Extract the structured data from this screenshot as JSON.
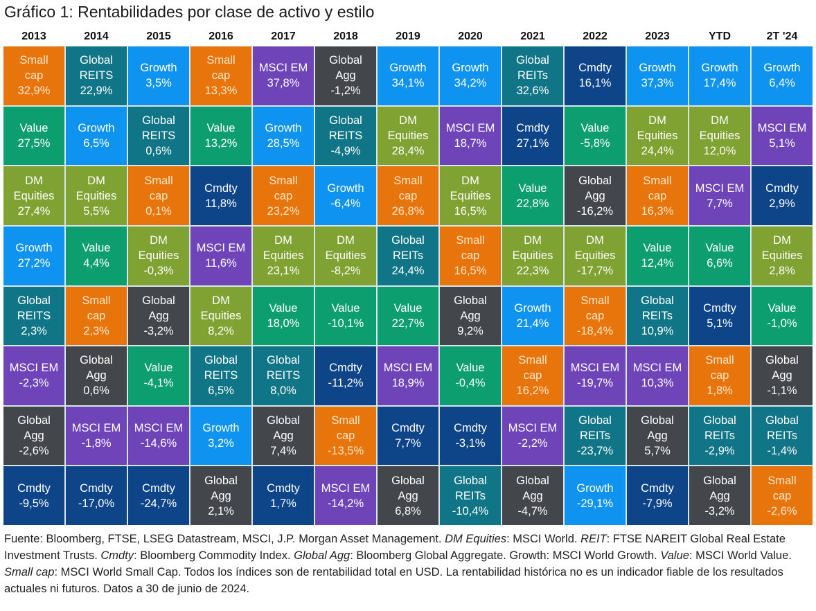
{
  "title": "Gráfico 1: Rentabilidades por clase de activo y estilo",
  "colors": {
    "Small cap": "#e8740c",
    "Global REITs": "#117588",
    "Growth": "#0f93f0",
    "MSCI EM": "#6f44b8",
    "Global Agg": "#43474b",
    "Cmdty": "#0e4488",
    "Value": "#0c9e6e",
    "DM Equities": "#7fa233"
  },
  "chart_data": {
    "type": "table",
    "title": "Gráfico 1: Rentabilidades por clase de activo y estilo",
    "columns": [
      "2013",
      "2014",
      "2015",
      "2016",
      "2017",
      "2018",
      "2019",
      "2020",
      "2021",
      "2022",
      "2023",
      "YTD",
      "2T '24"
    ],
    "ranking_order": "highest-to-lowest return per column",
    "cells": [
      [
        {
          "label": "Small\ncap",
          "value": "32,9%",
          "class": "Small cap"
        },
        {
          "label": "Value",
          "value": "27,5%",
          "class": "Value"
        },
        {
          "label": "DM\nEquities",
          "value": "27,4%",
          "class": "DM Equities"
        },
        {
          "label": "Growth",
          "value": "27,2%",
          "class": "Growth"
        },
        {
          "label": "Global\nREITS",
          "value": "2,3%",
          "class": "Global REITs"
        },
        {
          "label": "MSCI EM",
          "value": "-2,3%",
          "class": "MSCI EM"
        },
        {
          "label": "Global\nAgg",
          "value": "-2,6%",
          "class": "Global Agg"
        },
        {
          "label": "Cmdty",
          "value": "-9,5%",
          "class": "Cmdty"
        }
      ],
      [
        {
          "label": "Global\nREITS",
          "value": "22,9%",
          "class": "Global REITs"
        },
        {
          "label": "Growth",
          "value": "6,5%",
          "class": "Growth"
        },
        {
          "label": "DM\nEquities",
          "value": "5,5%",
          "class": "DM Equities"
        },
        {
          "label": "Value",
          "value": "4,4%",
          "class": "Value"
        },
        {
          "label": "Small\ncap",
          "value": "2,3%",
          "class": "Small cap"
        },
        {
          "label": "Global\nAgg",
          "value": "0,6%",
          "class": "Global Agg"
        },
        {
          "label": "MSCI EM",
          "value": "-1,8%",
          "class": "MSCI EM"
        },
        {
          "label": "Cmdty",
          "value": "-17,0%",
          "class": "Cmdty"
        }
      ],
      [
        {
          "label": "Growth",
          "value": "3,5%",
          "class": "Growth"
        },
        {
          "label": "Global\nREITS",
          "value": "0,6%",
          "class": "Global REITs"
        },
        {
          "label": "Small\ncap",
          "value": "0,1%",
          "class": "Small cap"
        },
        {
          "label": "DM\nEquities",
          "value": "-0,3%",
          "class": "DM Equities"
        },
        {
          "label": "Global\nAgg",
          "value": "-3,2%",
          "class": "Global Agg"
        },
        {
          "label": "Value",
          "value": "-4,1%",
          "class": "Value"
        },
        {
          "label": "MSCI EM",
          "value": "-14,6%",
          "class": "MSCI EM"
        },
        {
          "label": "Cmdty",
          "value": "-24,7%",
          "class": "Cmdty"
        }
      ],
      [
        {
          "label": "Small\ncap",
          "value": "13,3%",
          "class": "Small cap"
        },
        {
          "label": "Value",
          "value": "13,2%",
          "class": "Value"
        },
        {
          "label": "Cmdty",
          "value": "11,8%",
          "class": "Cmdty"
        },
        {
          "label": "MSCI EM",
          "value": "11,6%",
          "class": "MSCI EM"
        },
        {
          "label": "DM\nEquities",
          "value": "8,2%",
          "class": "DM Equities"
        },
        {
          "label": "Global\nREITS",
          "value": "6,5%",
          "class": "Global REITs"
        },
        {
          "label": "Growth",
          "value": "3,2%",
          "class": "Growth"
        },
        {
          "label": "Global\nAgg",
          "value": "2,1%",
          "class": "Global Agg"
        }
      ],
      [
        {
          "label": "MSCI EM",
          "value": "37,8%",
          "class": "MSCI EM"
        },
        {
          "label": "Growth",
          "value": "28,5%",
          "class": "Growth"
        },
        {
          "label": "Small\ncap",
          "value": "23,2%",
          "class": "Small cap"
        },
        {
          "label": "DM\nEquities",
          "value": "23,1%",
          "class": "DM Equities"
        },
        {
          "label": "Value",
          "value": "18,0%",
          "class": "Value"
        },
        {
          "label": "Global\nREITS",
          "value": "8,0%",
          "class": "Global REITs"
        },
        {
          "label": "Global\nAgg",
          "value": "7,4%",
          "class": "Global Agg"
        },
        {
          "label": "Cmdty",
          "value": "1,7%",
          "class": "Cmdty"
        }
      ],
      [
        {
          "label": "Global\nAgg",
          "value": "-1,2%",
          "class": "Global Agg"
        },
        {
          "label": "Global\nREITS",
          "value": "-4,9%",
          "class": "Global REITs"
        },
        {
          "label": "Growth",
          "value": "-6,4%",
          "class": "Growth"
        },
        {
          "label": "DM\nEquities",
          "value": "-8,2%",
          "class": "DM Equities"
        },
        {
          "label": "Value",
          "value": "-10,1%",
          "class": "Value"
        },
        {
          "label": "Cmdty",
          "value": "-11,2%",
          "class": "Cmdty"
        },
        {
          "label": "Small\ncap",
          "value": "-13,5%",
          "class": "Small cap"
        },
        {
          "label": "MSCI EM",
          "value": "-14,2%",
          "class": "MSCI EM"
        }
      ],
      [
        {
          "label": "Growth",
          "value": "34,1%",
          "class": "Growth"
        },
        {
          "label": "DM\nEquities",
          "value": "28,4%",
          "class": "DM Equities"
        },
        {
          "label": "Small\ncap",
          "value": "26,8%",
          "class": "Small cap"
        },
        {
          "label": "Global\nREITs",
          "value": "24,4%",
          "class": "Global REITs"
        },
        {
          "label": "Value",
          "value": "22,7%",
          "class": "Value"
        },
        {
          "label": "MSCI EM",
          "value": "18,9%",
          "class": "MSCI EM"
        },
        {
          "label": "Cmdty",
          "value": "7,7%",
          "class": "Cmdty"
        },
        {
          "label": "Global\nAgg",
          "value": "6,8%",
          "class": "Global Agg"
        }
      ],
      [
        {
          "label": "Growth",
          "value": "34,2%",
          "class": "Growth"
        },
        {
          "label": "MSCI EM",
          "value": "18,7%",
          "class": "MSCI EM"
        },
        {
          "label": "DM\nEquities",
          "value": "16,5%",
          "class": "DM Equities"
        },
        {
          "label": "Small\ncap",
          "value": "16,5%",
          "class": "Small cap"
        },
        {
          "label": "Global\nAgg",
          "value": "9,2%",
          "class": "Global Agg"
        },
        {
          "label": "Value",
          "value": "-0,4%",
          "class": "Value"
        },
        {
          "label": "Cmdty",
          "value": "-3,1%",
          "class": "Cmdty"
        },
        {
          "label": "Global\nREITs",
          "value": "-10,4%",
          "class": "Global REITs"
        }
      ],
      [
        {
          "label": "Global\nREITs",
          "value": "32,6%",
          "class": "Global REITs"
        },
        {
          "label": "Cmdty",
          "value": "27,1%",
          "class": "Cmdty"
        },
        {
          "label": "Value",
          "value": "22,8%",
          "class": "Value"
        },
        {
          "label": "DM\nEquities",
          "value": "22,3%",
          "class": "DM Equities"
        },
        {
          "label": "Growth",
          "value": "21,4%",
          "class": "Growth"
        },
        {
          "label": "Small\ncap",
          "value": "16,2%",
          "class": "Small cap"
        },
        {
          "label": "MSCI EM",
          "value": "-2,2%",
          "class": "MSCI EM"
        },
        {
          "label": "Global\nAgg",
          "value": "-4,7%",
          "class": "Global Agg"
        }
      ],
      [
        {
          "label": "Cmdty",
          "value": "16,1%",
          "class": "Cmdty"
        },
        {
          "label": "Value",
          "value": "-5,8%",
          "class": "Value"
        },
        {
          "label": "Global\nAgg",
          "value": "-16,2%",
          "class": "Global Agg"
        },
        {
          "label": "DM\nEquities",
          "value": "-17,7%",
          "class": "DM Equities"
        },
        {
          "label": "Small\ncap",
          "value": "-18,4%",
          "class": "Small cap"
        },
        {
          "label": "MSCI EM",
          "value": "-19,7%",
          "class": "MSCI EM"
        },
        {
          "label": "Global\nREITs",
          "value": "-23,7%",
          "class": "Global REITs"
        },
        {
          "label": "Growth",
          "value": "-29,1%",
          "class": "Growth"
        }
      ],
      [
        {
          "label": "Growth",
          "value": "37,3%",
          "class": "Growth"
        },
        {
          "label": "DM\nEquities",
          "value": "24,4%",
          "class": "DM Equities"
        },
        {
          "label": "Small\ncap",
          "value": "16,3%",
          "class": "Small cap"
        },
        {
          "label": "Value",
          "value": "12,4%",
          "class": "Value"
        },
        {
          "label": "Global\nREITs",
          "value": "10,9%",
          "class": "Global REITs"
        },
        {
          "label": "MSCI EM",
          "value": "10,3%",
          "class": "MSCI EM"
        },
        {
          "label": "Global\nAgg",
          "value": "5,7%",
          "class": "Global Agg"
        },
        {
          "label": "Cmdty",
          "value": "-7,9%",
          "class": "Cmdty"
        }
      ],
      [
        {
          "label": "Growth",
          "value": "17,4%",
          "class": "Growth"
        },
        {
          "label": "DM\nEquities",
          "value": "12,0%",
          "class": "DM Equities"
        },
        {
          "label": "MSCI EM",
          "value": "7,7%",
          "class": "MSCI EM"
        },
        {
          "label": "Value",
          "value": "6,6%",
          "class": "Value"
        },
        {
          "label": "Cmdty",
          "value": "5,1%",
          "class": "Cmdty"
        },
        {
          "label": "Small\ncap",
          "value": "1,8%",
          "class": "Small cap"
        },
        {
          "label": "Global\nREITs",
          "value": "-2,9%",
          "class": "Global REITs"
        },
        {
          "label": "Global\nAgg",
          "value": "-3,2%",
          "class": "Global Agg"
        }
      ],
      [
        {
          "label": "Growth",
          "value": "6,4%",
          "class": "Growth"
        },
        {
          "label": "MSCI EM",
          "value": "5,1%",
          "class": "MSCI EM"
        },
        {
          "label": "Cmdty",
          "value": "2,9%",
          "class": "Cmdty"
        },
        {
          "label": "DM\nEquities",
          "value": "2,8%",
          "class": "DM Equities"
        },
        {
          "label": "Value",
          "value": "-1,0%",
          "class": "Value"
        },
        {
          "label": "Global\nAgg",
          "value": "-1,1%",
          "class": "Global Agg"
        },
        {
          "label": "Global\nREITs",
          "value": "-1,4%",
          "class": "Global REITs"
        },
        {
          "label": "Small\ncap",
          "value": "-2,6%",
          "class": "Small cap"
        }
      ]
    ]
  },
  "footer": {
    "segments": [
      {
        "text": "Fuente: Bloomberg, FTSE, LSEG Datastream, MSCI, J.P. Morgan Asset Management. ",
        "italic": false
      },
      {
        "text": "DM Equities",
        "italic": true
      },
      {
        "text": ": MSCI World. ",
        "italic": false
      },
      {
        "text": "REIT",
        "italic": true
      },
      {
        "text": ": FTSE NAREIT Global Real Estate Investment Trusts. ",
        "italic": false
      },
      {
        "text": "Cmdty",
        "italic": true
      },
      {
        "text": ": Bloomberg Commodity Index. ",
        "italic": false
      },
      {
        "text": "Global Agg",
        "italic": true
      },
      {
        "text": ": Bloomberg Global Aggregate. Growth: MSCI World Growth. ",
        "italic": false
      },
      {
        "text": "Value",
        "italic": true
      },
      {
        "text": ": MSCI World Value. ",
        "italic": false
      },
      {
        "text": "Small cap",
        "italic": true
      },
      {
        "text": ": MSCI World Small Cap. Todos los índices son de rentabilidad total en USD. La rentabilidad histórica no es un indicador fiable de los resultados actuales ni futuros. Datos a 30 de junio de 2024.",
        "italic": false
      }
    ]
  }
}
